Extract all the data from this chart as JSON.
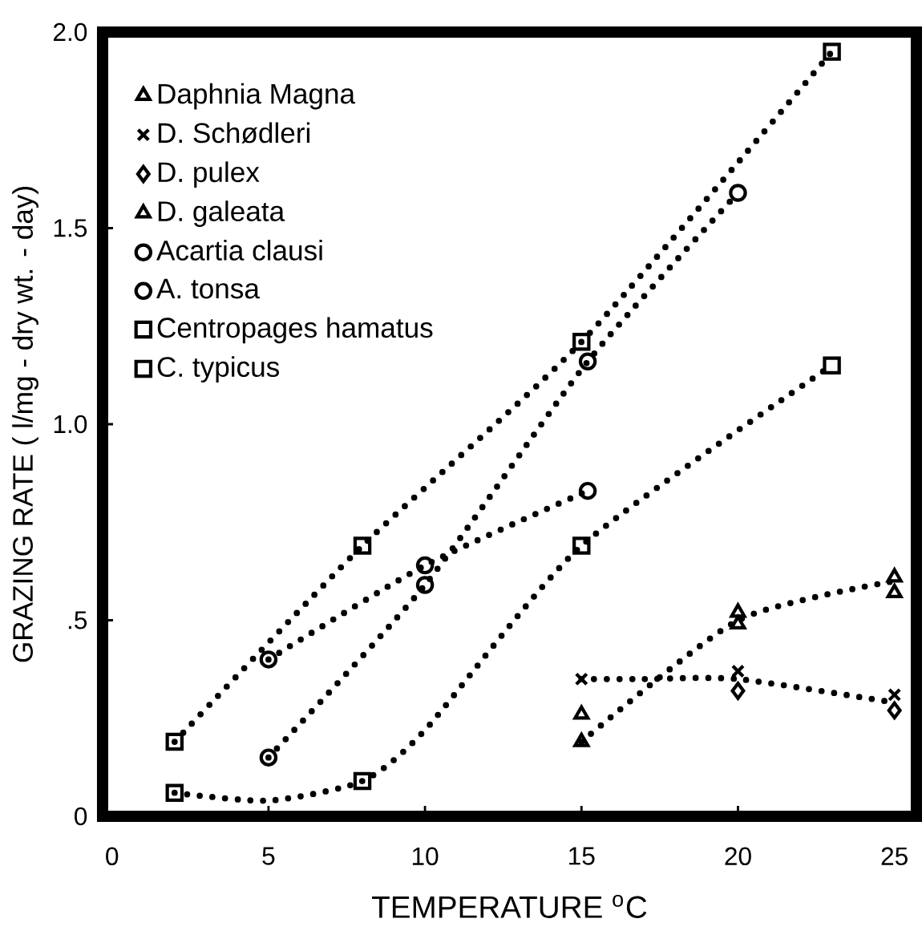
{
  "chart_data": {
    "type": "scatter",
    "xlabel": "TEMPERATURE $^{o}$C",
    "ylabel": "GRAZING RATE ( l/mg - dry wt. - day)",
    "xlim": [
      -0.3,
      25.7
    ],
    "ylim": [
      0,
      2.0
    ],
    "xticks": [
      0,
      5,
      10,
      15,
      20,
      25
    ],
    "yticks": [
      0,
      {
        "value": 0.5,
        "label": ".5"
      },
      {
        "value": 1.0,
        "label": "1.0"
      },
      {
        "value": 1.5,
        "label": "1.5"
      },
      {
        "value": 2.0,
        "label": "2.0"
      }
    ],
    "grid": false,
    "legend": "top left",
    "series": [
      {
        "name": "Daphnia Magna",
        "marker": "triangle",
        "color": "#000000",
        "x": [
          15,
          20,
          25
        ],
        "values": [
          0.26,
          0.52,
          0.61
        ]
      },
      {
        "name": "D. Schødleri",
        "marker": "cross",
        "color": "#000000",
        "x": [
          15,
          20,
          25
        ],
        "values": [
          0.35,
          0.37,
          0.31
        ]
      },
      {
        "name": "D. pulex",
        "marker": "diamond",
        "color": "#000000",
        "x": [
          20,
          25
        ],
        "values": [
          0.32,
          0.27
        ]
      },
      {
        "name": "D. galeata",
        "marker": "triangle",
        "color": "#000000",
        "x": [
          15,
          20,
          25
        ],
        "values": [
          0.19,
          0.49,
          0.57
        ]
      },
      {
        "name": "Acartia clausi",
        "marker": "circle",
        "color": "#000000",
        "x": [
          5,
          10,
          15.2,
          20
        ],
        "values": [
          0.15,
          0.59,
          1.16,
          1.59
        ]
      },
      {
        "name": "A. tonsa",
        "marker": "circle",
        "color": "#000000",
        "x": [
          5,
          10,
          15.2
        ],
        "values": [
          0.4,
          0.64,
          0.83
        ]
      },
      {
        "name": "Centropages hamatus",
        "marker": "square",
        "color": "#000000",
        "x": [
          2,
          8,
          15,
          23
        ],
        "values": [
          0.06,
          0.09,
          0.69,
          1.15
        ]
      },
      {
        "name": "C. typicus",
        "marker": "square",
        "color": "#000000",
        "x": [
          2,
          8,
          15,
          23
        ],
        "values": [
          0.19,
          0.69,
          1.21,
          1.95
        ]
      },
      {
        "type": "line",
        "marker": "none",
        "line_style": "dotted",
        "color": "#000000",
        "x": [
          2,
          8,
          15,
          23
        ],
        "values": [
          0.19,
          0.69,
          1.21,
          1.95
        ]
      },
      {
        "type": "line",
        "marker": "none",
        "line_style": "dotted",
        "color": "#000000",
        "x": [
          5,
          10,
          15.2,
          20
        ],
        "values": [
          0.15,
          0.59,
          1.16,
          1.59
        ]
      },
      {
        "type": "line",
        "marker": "none",
        "line_style": "dotted",
        "color": "#000000",
        "x": [
          5,
          10,
          15.2
        ],
        "values": [
          0.4,
          0.64,
          0.83
        ]
      },
      {
        "type": "line",
        "marker": "none",
        "line_style": "dotted",
        "color": "#000000",
        "x": [
          2,
          5,
          8,
          10,
          15,
          23
        ],
        "values": [
          0.06,
          0.04,
          0.09,
          0.22,
          0.69,
          1.15
        ]
      },
      {
        "type": "line",
        "marker": "none",
        "line_style": "dotted",
        "color": "#000000",
        "x": [
          15,
          20,
          25
        ],
        "values": [
          0.19,
          0.5,
          0.6
        ]
      },
      {
        "type": "line",
        "marker": "none",
        "line_style": "dotted",
        "color": "#000000",
        "x": [
          15,
          17,
          20,
          25
        ],
        "values": [
          0.35,
          0.35,
          0.35,
          0.29
        ]
      }
    ]
  }
}
